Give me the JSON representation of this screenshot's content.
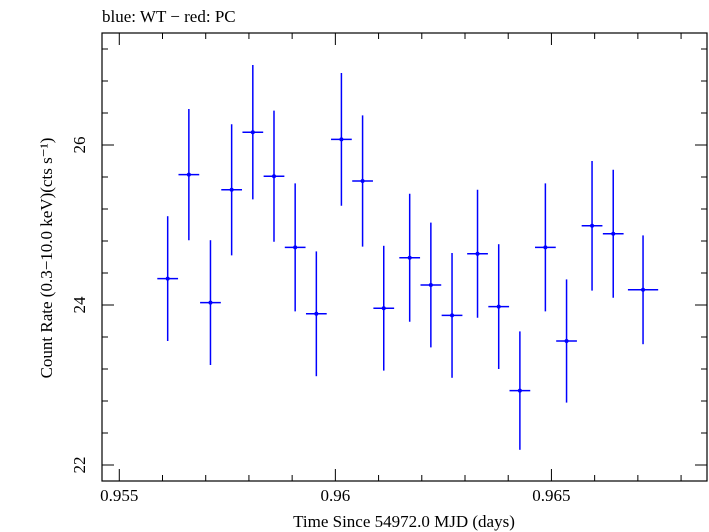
{
  "chart_data": {
    "type": "scatter",
    "title": "blue: WT − red: PC",
    "xlabel": "Time Since 54972.0 MJD (days)",
    "ylabel": "Count Rate (0.3−10.0 keV)(cts s⁻¹)",
    "xlim": [
      0.9546,
      0.9686
    ],
    "ylim": [
      21.8,
      27.4
    ],
    "x_ticks": [
      {
        "value": 0.955,
        "label": "0.955"
      },
      {
        "value": 0.96,
        "label": "0.96"
      },
      {
        "value": 0.965,
        "label": "0.965"
      }
    ],
    "y_ticks": [
      {
        "value": 22,
        "label": "22"
      },
      {
        "value": 24,
        "label": "24"
      },
      {
        "value": 26,
        "label": "26"
      }
    ],
    "x_minor_step": 0.001,
    "y_minor_step": 0.4,
    "grid": false,
    "series": [
      {
        "name": "WT",
        "color": "#0000ff",
        "x": [
          0.95612,
          0.95661,
          0.95711,
          0.9576,
          0.95809,
          0.95858,
          0.95907,
          0.95956,
          0.96014,
          0.96063,
          0.96112,
          0.96172,
          0.96221,
          0.9627,
          0.96329,
          0.96378,
          0.96427,
          0.96486,
          0.96535,
          0.96594,
          0.96643,
          0.96712
        ],
        "xerr": [
          0.00024,
          0.00024,
          0.00024,
          0.00024,
          0.00024,
          0.00024,
          0.00024,
          0.00024,
          0.00024,
          0.00024,
          0.00024,
          0.00024,
          0.00024,
          0.00024,
          0.00024,
          0.00024,
          0.00024,
          0.00024,
          0.00024,
          0.00024,
          0.00024,
          0.00035
        ],
        "y": [
          24.33,
          25.63,
          24.03,
          25.44,
          26.16,
          25.61,
          24.72,
          23.89,
          26.07,
          25.55,
          23.96,
          24.59,
          24.25,
          23.87,
          24.64,
          23.98,
          22.93,
          24.72,
          23.55,
          24.99,
          24.89,
          24.19
        ],
        "yerr": [
          0.78,
          0.82,
          0.78,
          0.82,
          0.84,
          0.82,
          0.8,
          0.78,
          0.83,
          0.82,
          0.78,
          0.8,
          0.78,
          0.78,
          0.8,
          0.78,
          0.74,
          0.8,
          0.77,
          0.81,
          0.8,
          0.68
        ]
      }
    ]
  }
}
